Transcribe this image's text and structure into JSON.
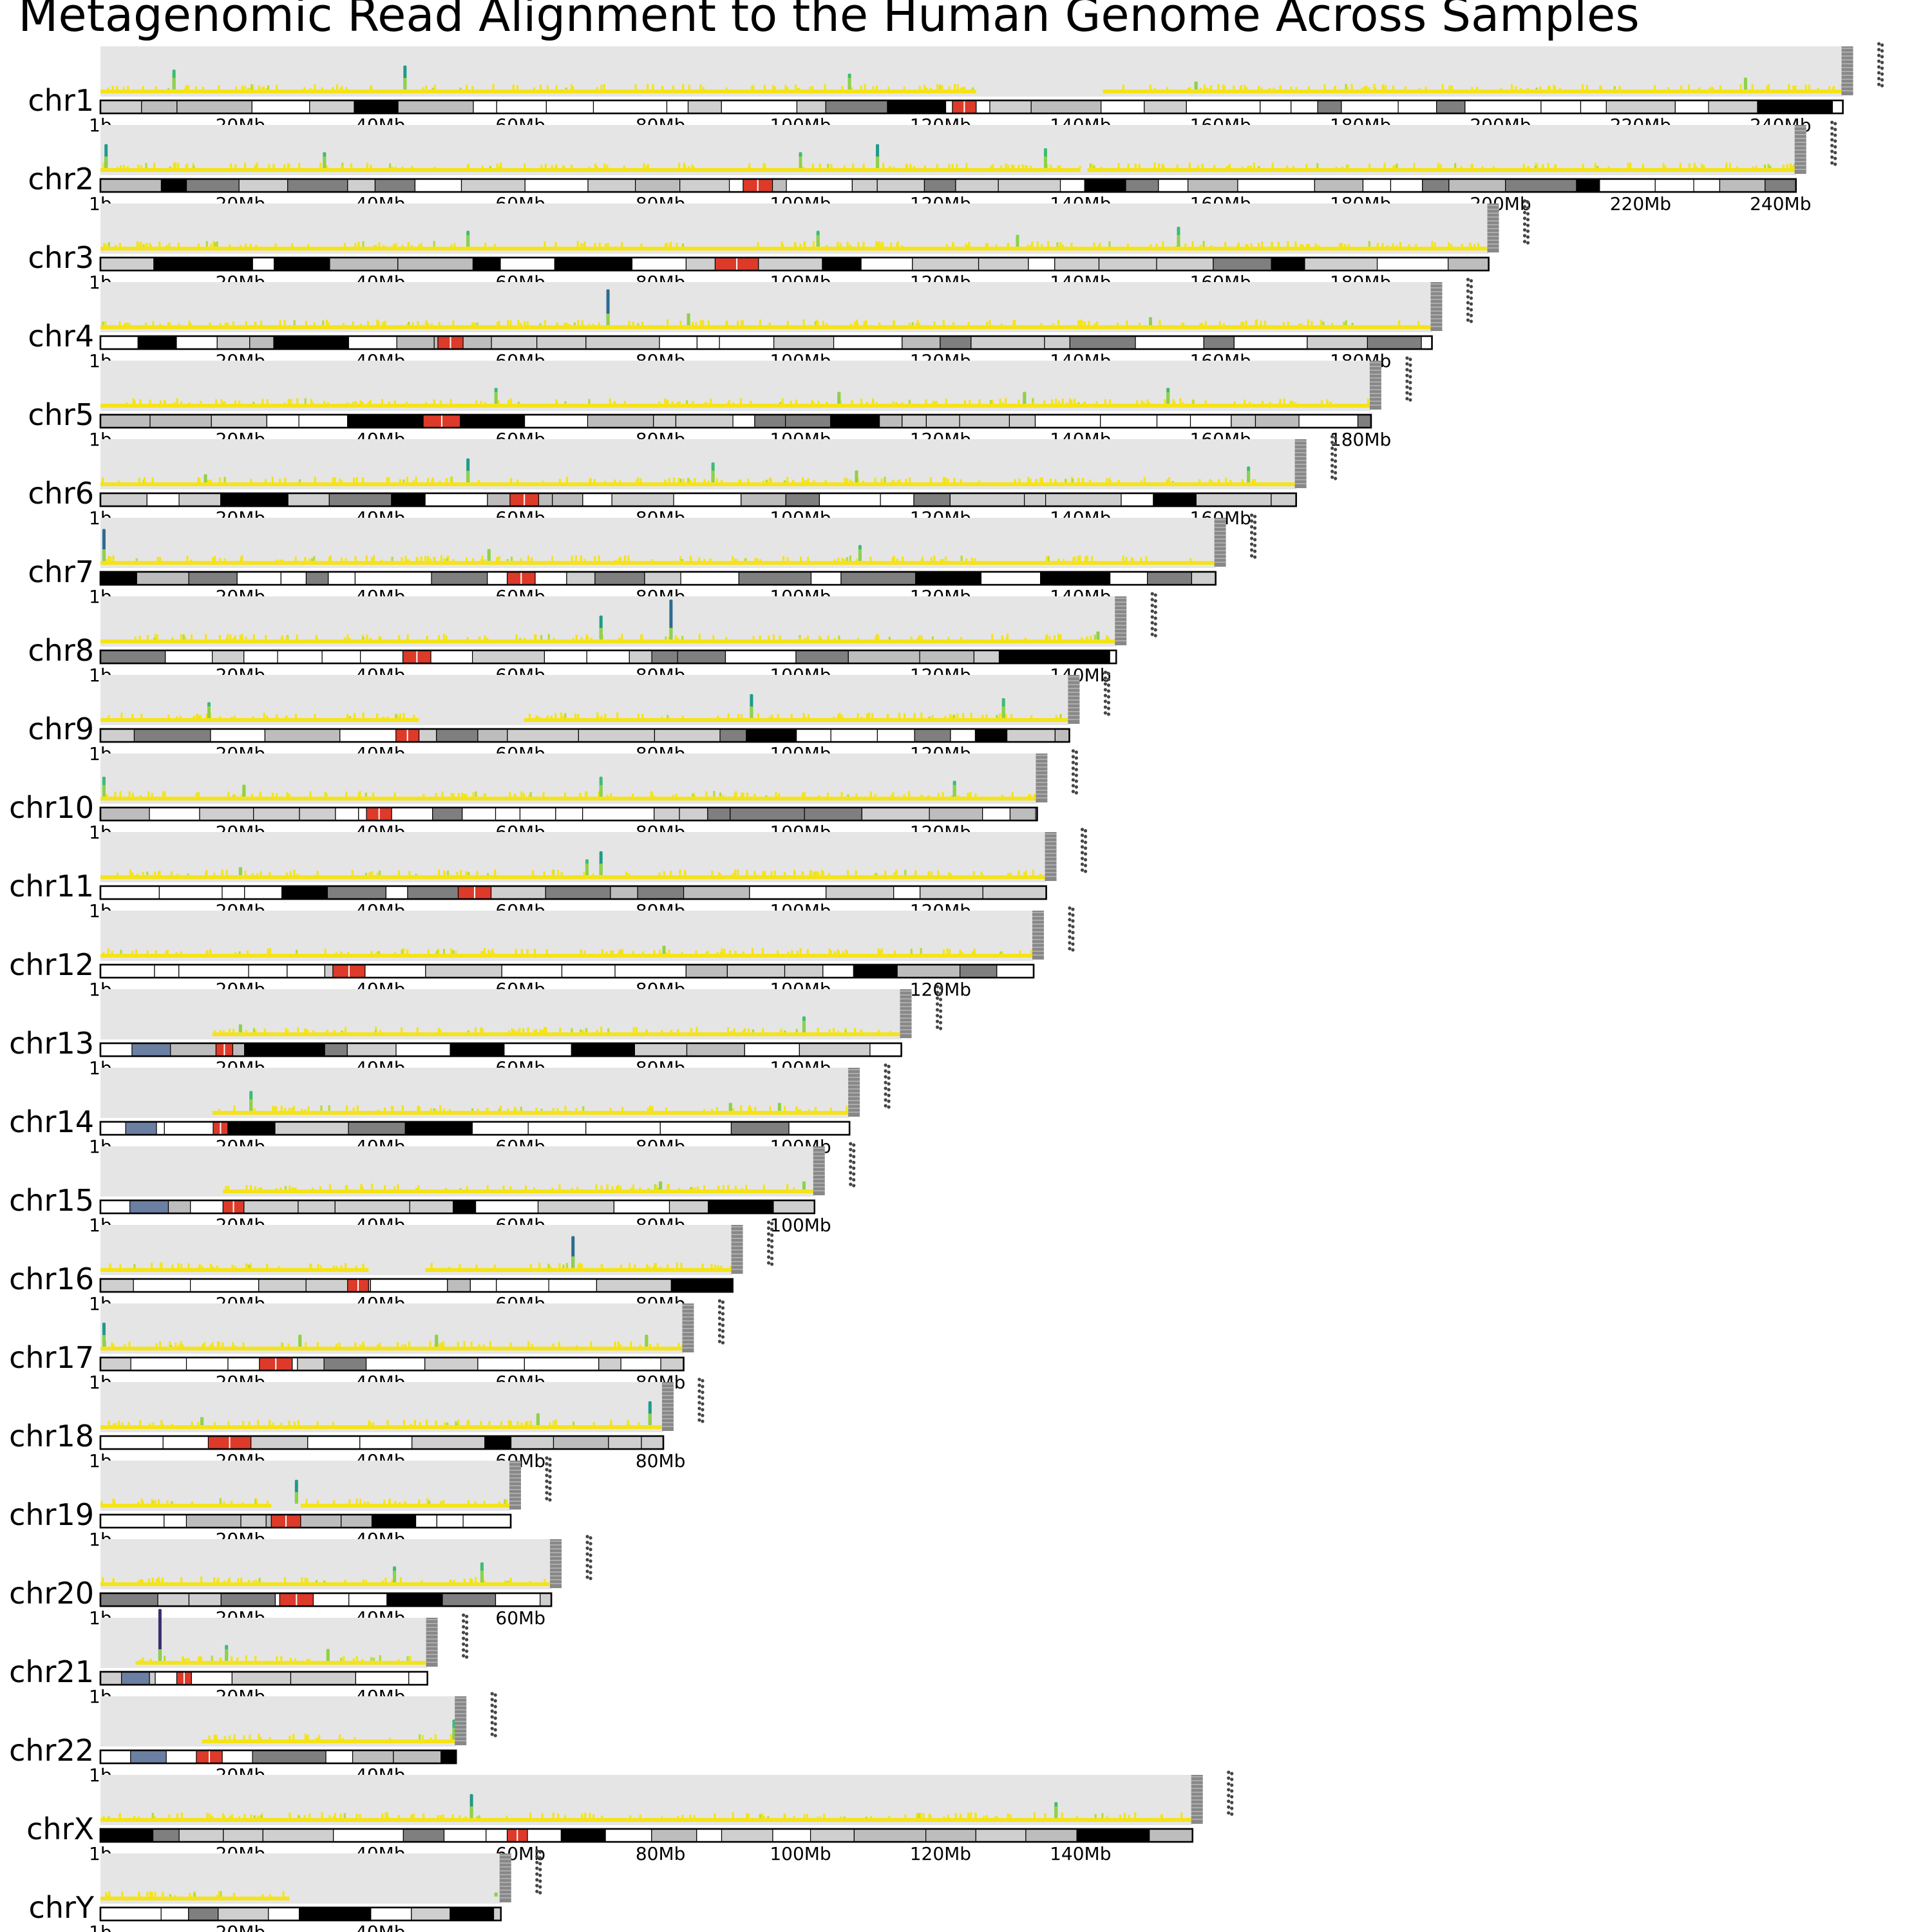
{
  "chart_data": {
    "type": "ideogram",
    "title": "Metagenomic Read Alignment to the Human Genome Across Samples",
    "tick_step_mb": 20,
    "tick_first_label": "1b",
    "tick_suffix": "Mb",
    "colors": {
      "panel_bg": "#e5e5e5",
      "baseline": "#f4e31b",
      "centromere": "#dd3a2a",
      "stalk": "#6b7fa3",
      "band_gpos25": "#cfcfcf",
      "band_gpos50": "#bdbdbd",
      "band_gpos75": "#7f7f7f",
      "band_gpos100": "#000000",
      "legend_bar": "#888888",
      "viridis_high": "#3a5a8c"
    },
    "chromosomes": [
      {
        "name": "chr1",
        "length_mb": 248.9,
        "centromere_mb": [
          121.7,
          125.1
        ],
        "gap_mb": [
          125.1,
          143.2
        ],
        "peaks": [
          [
            10.5,
            0.5
          ],
          [
            43.5,
            0.6
          ],
          [
            107,
            0.4
          ],
          [
            156.5,
            0.2
          ],
          [
            235,
            0.3
          ]
        ]
      },
      {
        "name": "chr2",
        "length_mb": 242.2,
        "centromere_mb": [
          91.8,
          96.0
        ],
        "gap_mb": [
          140,
          141
        ],
        "peaks": [
          [
            0.8,
            0.6
          ],
          [
            32,
            0.4
          ],
          [
            100,
            0.4
          ],
          [
            111,
            0.6
          ],
          [
            135,
            0.5
          ]
        ]
      },
      {
        "name": "chr3",
        "length_mb": 198.3,
        "centromere_mb": [
          87.8,
          94.0
        ],
        "gap_mb": null,
        "peaks": [
          [
            52.5,
            0.4
          ],
          [
            102.5,
            0.4
          ],
          [
            131,
            0.3
          ],
          [
            154,
            0.5
          ]
        ]
      },
      {
        "name": "chr4",
        "length_mb": 190.2,
        "centromere_mb": [
          48.2,
          51.8
        ],
        "gap_mb": null,
        "peaks": [
          [
            72.5,
            0.9
          ],
          [
            84,
            0.3
          ],
          [
            150,
            0.2
          ]
        ]
      },
      {
        "name": "chr5",
        "length_mb": 181.5,
        "centromere_mb": [
          46.1,
          51.4
        ],
        "gap_mb": null,
        "peaks": [
          [
            56.5,
            0.4
          ],
          [
            105.5,
            0.3
          ],
          [
            132,
            0.3
          ],
          [
            152.5,
            0.4
          ]
        ]
      },
      {
        "name": "chr6",
        "length_mb": 170.8,
        "centromere_mb": [
          58.5,
          62.6
        ],
        "gap_mb": null,
        "peaks": [
          [
            15,
            0.2
          ],
          [
            52.5,
            0.6
          ],
          [
            87.5,
            0.5
          ],
          [
            108,
            0.3
          ],
          [
            164,
            0.4
          ]
        ]
      },
      {
        "name": "chr7",
        "length_mb": 159.3,
        "centromere_mb": [
          58.1,
          62.1
        ],
        "gap_mb": null,
        "peaks": [
          [
            0.5,
            0.8
          ],
          [
            55.5,
            0.3
          ],
          [
            108.5,
            0.4
          ]
        ]
      },
      {
        "name": "chr8",
        "length_mb": 145.1,
        "centromere_mb": [
          43.2,
          47.2
        ],
        "gap_mb": null,
        "peaks": [
          [
            71.5,
            0.6
          ],
          [
            81.5,
            1.0
          ],
          [
            142.5,
            0.2
          ]
        ]
      },
      {
        "name": "chr9",
        "length_mb": 138.4,
        "centromere_mb": [
          42.2,
          45.5
        ],
        "gap_mb": [
          45.5,
          60.5
        ],
        "peaks": [
          [
            15.5,
            0.4
          ],
          [
            93,
            0.6
          ],
          [
            129,
            0.5
          ]
        ]
      },
      {
        "name": "chr10",
        "length_mb": 133.8,
        "centromere_mb": [
          38.0,
          41.6
        ],
        "gap_mb": null,
        "peaks": [
          [
            0.5,
            0.5
          ],
          [
            20.5,
            0.3
          ],
          [
            71.5,
            0.5
          ],
          [
            122,
            0.4
          ]
        ]
      },
      {
        "name": "chr11",
        "length_mb": 135.1,
        "centromere_mb": [
          51.1,
          55.8
        ],
        "gap_mb": null,
        "peaks": [
          [
            20,
            0.2
          ],
          [
            69.5,
            0.4
          ],
          [
            71.5,
            0.6
          ]
        ]
      },
      {
        "name": "chr12",
        "length_mb": 133.3,
        "centromere_mb": [
          33.2,
          37.8
        ],
        "gap_mb": null,
        "peaks": [
          [
            80.5,
            0.2
          ]
        ]
      },
      {
        "name": "chr13",
        "length_mb": 114.4,
        "centromere_mb": [
          16.5,
          18.9
        ],
        "gap_mb": [
          0,
          16
        ],
        "stalk_mb": [
          4.5,
          10.0
        ],
        "peaks": [
          [
            20,
            0.2
          ],
          [
            100.5,
            0.4
          ]
        ]
      },
      {
        "name": "chr14",
        "length_mb": 107.0,
        "centromere_mb": [
          16.1,
          18.2
        ],
        "gap_mb": [
          0,
          16
        ],
        "stalk_mb": [
          3.6,
          8.0
        ],
        "peaks": [
          [
            21.5,
            0.5
          ],
          [
            90,
            0.2
          ],
          [
            97,
            0.2
          ]
        ]
      },
      {
        "name": "chr15",
        "length_mb": 102.0,
        "centromere_mb": [
          17.5,
          20.5
        ],
        "gap_mb": [
          0,
          17.5
        ],
        "stalk_mb": [
          4.2,
          9.7
        ],
        "peaks": [
          [
            80,
            0.2
          ],
          [
            100.5,
            0.2
          ]
        ]
      },
      {
        "name": "chr16",
        "length_mb": 90.3,
        "centromere_mb": [
          35.3,
          38.3
        ],
        "gap_mb": [
          38.3,
          46.4
        ],
        "peaks": [
          [
            67.5,
            0.8
          ]
        ]
      },
      {
        "name": "chr17",
        "length_mb": 83.3,
        "centromere_mb": [
          22.7,
          27.4
        ],
        "gap_mb": null,
        "peaks": [
          [
            0.5,
            0.6
          ],
          [
            28.5,
            0.3
          ],
          [
            48,
            0.3
          ],
          [
            78,
            0.3
          ]
        ]
      },
      {
        "name": "chr18",
        "length_mb": 80.4,
        "centromere_mb": [
          15.4,
          21.5
        ],
        "gap_mb": null,
        "peaks": [
          [
            14.5,
            0.2
          ],
          [
            62.5,
            0.3
          ],
          [
            78.5,
            0.6
          ]
        ]
      },
      {
        "name": "chr19",
        "length_mb": 58.6,
        "centromere_mb": [
          24.4,
          28.6
        ],
        "gap_mb": [
          24.4,
          28.6
        ],
        "peaks": [
          [
            28,
            0.6
          ]
        ]
      },
      {
        "name": "chr20",
        "length_mb": 64.4,
        "centromere_mb": [
          25.6,
          30.4
        ],
        "gap_mb": null,
        "peaks": [
          [
            42,
            0.4
          ],
          [
            54.5,
            0.5
          ]
        ]
      },
      {
        "name": "chr21",
        "length_mb": 46.7,
        "centromere_mb": [
          10.9,
          13.0
        ],
        "gap_mb": [
          0,
          5.0
        ],
        "stalk_mb": [
          3.0,
          7.0
        ],
        "peaks": [
          [
            8.5,
            1.3
          ],
          [
            18,
            0.4
          ],
          [
            32.5,
            0.3
          ]
        ]
      },
      {
        "name": "chr22",
        "length_mb": 50.8,
        "centromere_mb": [
          13.7,
          17.4
        ],
        "gap_mb": [
          0,
          14.5
        ],
        "stalk_mb": [
          4.3,
          9.4
        ],
        "peaks": [
          [
            50.5,
            0.5
          ]
        ]
      },
      {
        "name": "chrX",
        "length_mb": 156.0,
        "centromere_mb": [
          58.1,
          61.0
        ],
        "gap_mb": null,
        "peaks": [
          [
            53,
            0.6
          ],
          [
            136.5,
            0.4
          ]
        ]
      },
      {
        "name": "chrY",
        "length_mb": 57.2,
        "centromere_mb": null,
        "gap_mb": [
          27,
          57.2
        ],
        "peaks": [
          [
            56.5,
            0.1
          ]
        ]
      }
    ]
  }
}
